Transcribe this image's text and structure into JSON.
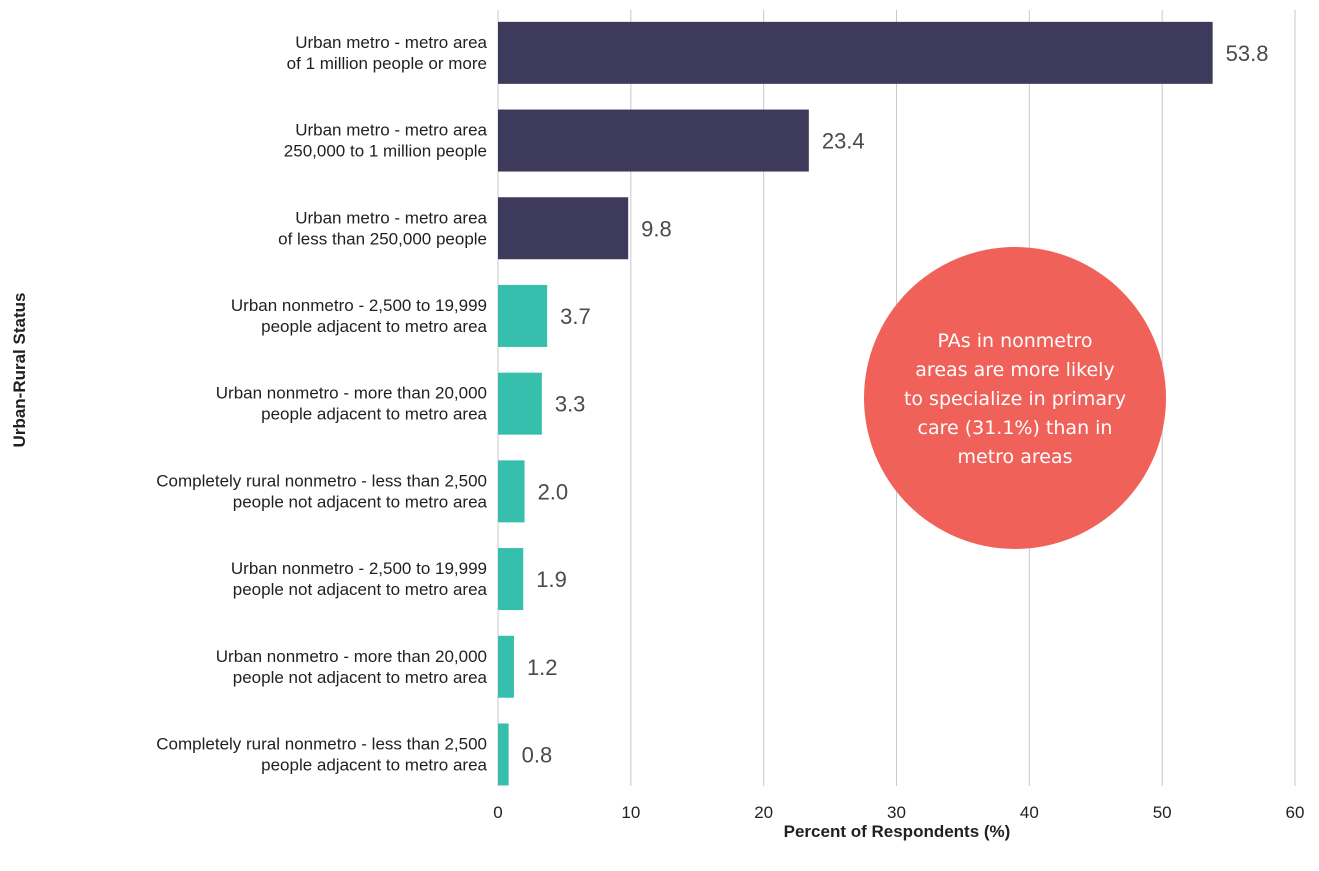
{
  "chart_data": {
    "type": "bar",
    "orientation": "horizontal",
    "categories": [
      [
        "Urban metro - metro area",
        "of 1 million people or more"
      ],
      [
        "Urban metro - metro area",
        "250,000 to 1 million people"
      ],
      [
        "Urban metro - metro area",
        "of less than 250,000 people"
      ],
      [
        "Urban nonmetro - 2,500 to 19,999",
        "people adjacent to metro area"
      ],
      [
        "Urban nonmetro - more than 20,000",
        "people adjacent to metro area"
      ],
      [
        "Completely rural nonmetro - less than 2,500",
        "people not adjacent to metro area"
      ],
      [
        "Urban nonmetro - 2,500 to 19,999",
        "people not adjacent to metro area"
      ],
      [
        "Urban nonmetro - more than 20,000",
        "people not adjacent to metro area"
      ],
      [
        "Completely rural nonmetro - less than 2,500",
        "people adjacent to metro area"
      ]
    ],
    "values": [
      53.8,
      23.4,
      9.8,
      3.7,
      3.3,
      2.0,
      1.9,
      1.2,
      0.8
    ],
    "value_labels": [
      "53.8",
      "23.4",
      "9.8",
      "3.7",
      "3.3",
      "2.0",
      "1.9",
      "1.2",
      "0.8"
    ],
    "groups": [
      "metro",
      "metro",
      "metro",
      "nonmetro",
      "nonmetro",
      "nonmetro",
      "nonmetro",
      "nonmetro",
      "nonmetro"
    ],
    "group_colors": {
      "metro": "#3d3a5c",
      "nonmetro": "#37bfae"
    },
    "xlabel": "Percent of Respondents (%)",
    "ylabel": "Urban-Rural Status",
    "xlim": [
      0,
      60
    ],
    "xticks": [
      0,
      10,
      20,
      30,
      40,
      50,
      60
    ],
    "grid": "vertical",
    "grid_color": "#c8c8c8",
    "annotation": {
      "lines": [
        "PAs in nonmetro",
        "areas are more likely",
        "to specialize in primary",
        "care (31.1%) than in",
        "metro areas"
      ],
      "shape": "circle",
      "color": "#f0615a",
      "text_color": "#ffffff"
    }
  }
}
